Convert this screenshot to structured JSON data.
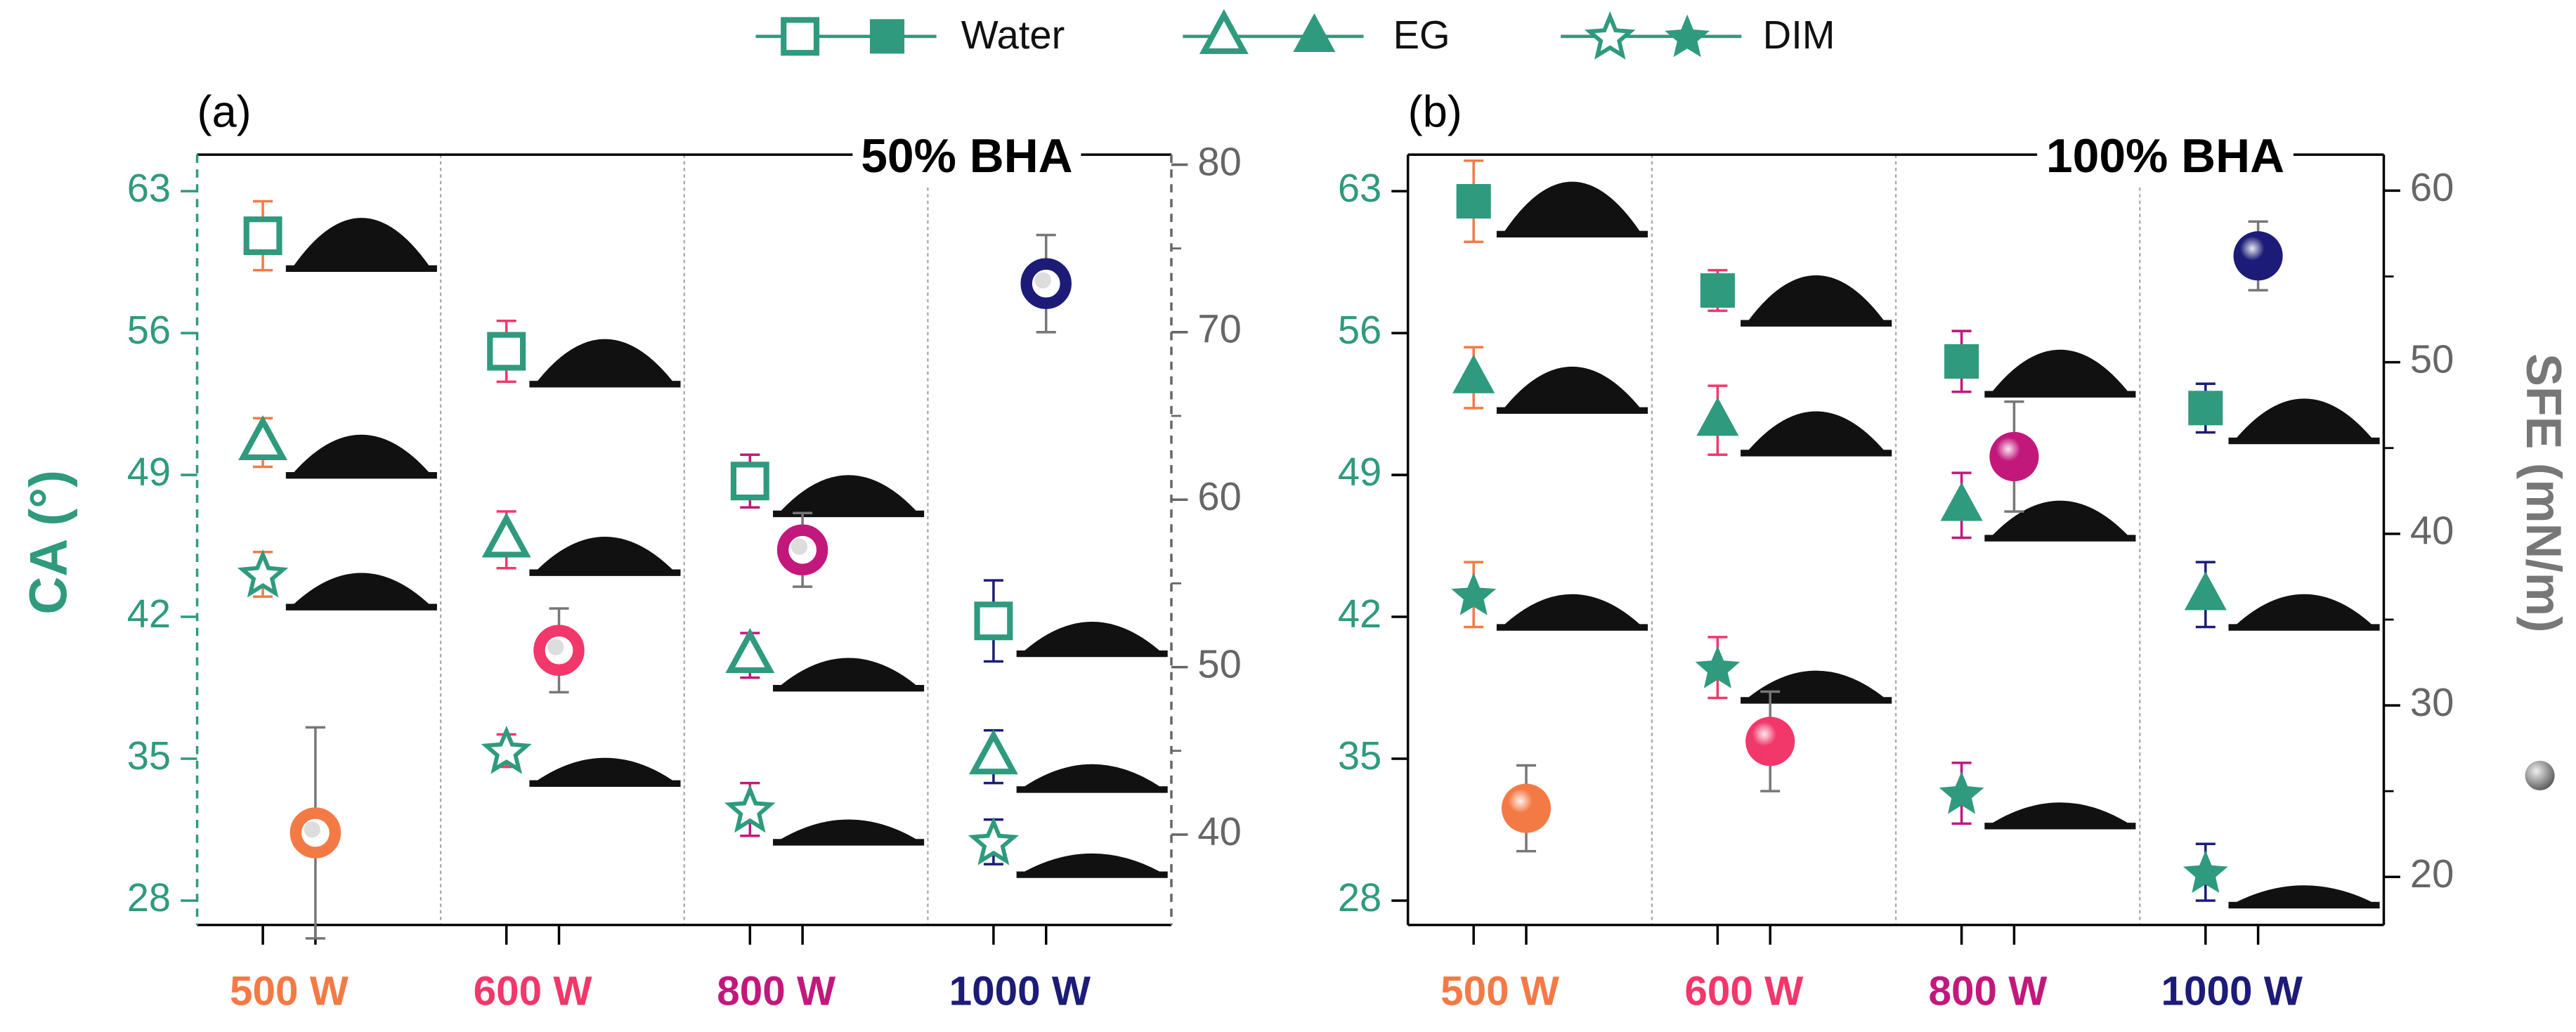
{
  "chart_data": [
    {
      "type": "dot",
      "panel_label": "(a)",
      "title": "50% BHA",
      "ylabel": "CA (°)",
      "dashed_axes": true,
      "categories": [
        "500 W",
        "600 W",
        "800 W",
        "1000 W"
      ],
      "category_colors": [
        "#f47a45",
        "#f2376a",
        "#c2187c",
        "#1c1c78"
      ],
      "ylim": [
        26.8,
        64.8
      ],
      "yticks": [
        28,
        35,
        42,
        49,
        56,
        63
      ],
      "y2lim": [
        34.6,
        80.6
      ],
      "y2ticks": [
        40,
        50,
        60,
        70,
        80
      ],
      "series": [
        {
          "name": "Water",
          "marker": "square",
          "filled": false,
          "color": "#2f9a7e",
          "values": [
            60.8,
            55.1,
            48.7,
            41.8
          ],
          "errors": [
            1.7,
            1.5,
            1.3,
            2.0
          ]
        },
        {
          "name": "EG",
          "marker": "triangle",
          "filled": false,
          "color": "#2f9a7e",
          "values": [
            50.6,
            45.8,
            40.1,
            35.1
          ],
          "errors": [
            1.2,
            1.4,
            1.1,
            1.3
          ]
        },
        {
          "name": "DIM",
          "marker": "star",
          "filled": false,
          "color": "#2f9a7e",
          "values": [
            44.1,
            35.4,
            32.5,
            30.9
          ],
          "errors": [
            1.1,
            0.8,
            1.3,
            1.1
          ]
        },
        {
          "marker": "ring",
          "axis": "y2",
          "values": [
            40.1,
            51.0,
            57.0,
            72.9
          ],
          "errors": [
            6.3,
            2.5,
            2.2,
            2.9
          ]
        }
      ]
    },
    {
      "type": "dot",
      "panel_label": "(b)",
      "title": "100% BHA",
      "y2label": "SFE (mN/m)",
      "dashed_axes": false,
      "categories": [
        "500 W",
        "600 W",
        "800 W",
        "1000 W"
      ],
      "category_colors": [
        "#f47a45",
        "#f2376a",
        "#c2187c",
        "#1c1c78"
      ],
      "ylim": [
        26.8,
        64.8
      ],
      "yticks": [
        28,
        35,
        42,
        49,
        56,
        63
      ],
      "y2lim": [
        17.2,
        62.1
      ],
      "y2ticks": [
        20,
        30,
        40,
        50,
        60
      ],
      "series": [
        {
          "marker": "square",
          "filled": true,
          "color": "#2f9a7e",
          "values": [
            62.5,
            58.1,
            54.6,
            52.3
          ],
          "errors": [
            2.0,
            1.0,
            1.5,
            1.2
          ]
        },
        {
          "marker": "triangle",
          "filled": true,
          "color": "#2f9a7e",
          "values": [
            53.8,
            51.7,
            47.5,
            43.1
          ],
          "errors": [
            1.5,
            1.7,
            1.6,
            1.6
          ]
        },
        {
          "marker": "star",
          "filled": true,
          "color": "#2f9a7e",
          "values": [
            43.1,
            39.5,
            33.3,
            29.4
          ],
          "errors": [
            1.6,
            1.5,
            1.5,
            1.4
          ]
        },
        {
          "marker": "sphere",
          "axis": "y2",
          "values": [
            24.0,
            27.9,
            44.5,
            56.2
          ],
          "errors": [
            2.5,
            2.9,
            3.2,
            2.0
          ]
        }
      ]
    }
  ]
}
